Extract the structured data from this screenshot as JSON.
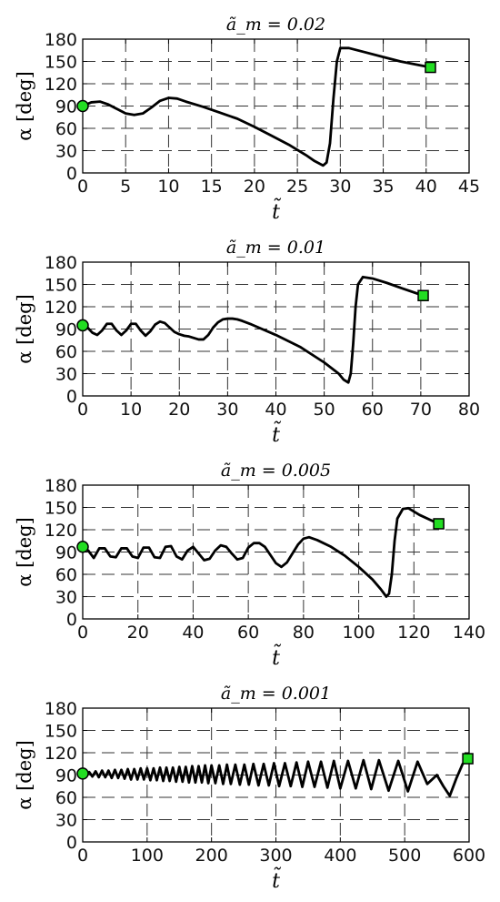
{
  "chart_data": [
    {
      "type": "line",
      "title": "ã_m = 0.02",
      "ylabel": "α [deg]",
      "xlabel": "t̃",
      "xlim": [
        0,
        45
      ],
      "ylim": [
        0,
        180
      ],
      "xticks": [
        "0",
        "5",
        "10",
        "15",
        "20",
        "25",
        "30",
        "35",
        "40",
        "45"
      ],
      "yticks": [
        "0",
        "30",
        "60",
        "90",
        "120",
        "150",
        "180"
      ],
      "grid": true,
      "start_marker": {
        "x": 0,
        "y": 90,
        "shape": "circle",
        "color": "#22dd22"
      },
      "end_marker": {
        "x": 40.5,
        "y": 142,
        "shape": "square",
        "color": "#22dd22"
      },
      "x": [
        0,
        1,
        2,
        3,
        4,
        5,
        6,
        7,
        8,
        9,
        10,
        11,
        12,
        14,
        16,
        18,
        20,
        22,
        24,
        26,
        27,
        28,
        28.4,
        28.8,
        29.2,
        29.6,
        30,
        31,
        33,
        35,
        37,
        40.5
      ],
      "y": [
        90,
        95,
        96,
        92,
        86,
        80,
        78,
        80,
        88,
        97,
        101,
        100,
        96,
        89,
        81,
        73,
        62,
        50,
        38,
        24,
        16,
        10,
        14,
        40,
        100,
        150,
        168,
        168,
        162,
        156,
        150,
        142
      ]
    },
    {
      "type": "line",
      "title": "ã_m = 0.01",
      "ylabel": "α [deg]",
      "xlabel": "t̃",
      "xlim": [
        0,
        80
      ],
      "ylim": [
        0,
        180
      ],
      "xticks": [
        "0",
        "10",
        "20",
        "30",
        "40",
        "50",
        "60",
        "70",
        "80"
      ],
      "yticks": [
        "0",
        "30",
        "60",
        "90",
        "120",
        "150",
        "180"
      ],
      "grid": true,
      "start_marker": {
        "x": 0,
        "y": 95,
        "shape": "circle",
        "color": "#22dd22"
      },
      "end_marker": {
        "x": 70.5,
        "y": 135,
        "shape": "square",
        "color": "#22dd22"
      },
      "x": [
        0,
        1,
        2,
        3,
        4,
        5,
        6,
        7,
        8,
        9,
        10,
        11,
        12,
        13,
        14,
        15,
        16,
        17,
        18,
        19,
        20,
        21,
        22,
        23,
        24,
        25,
        26,
        27,
        28,
        29,
        30,
        31,
        32,
        33,
        35,
        40,
        45,
        50,
        53,
        54,
        55,
        55.5,
        56,
        56.5,
        57,
        58,
        60,
        63,
        66,
        70.5
      ],
      "y": [
        95,
        92,
        85,
        82,
        88,
        97,
        97,
        88,
        82,
        88,
        97,
        97,
        88,
        81,
        87,
        96,
        100,
        98,
        92,
        86,
        83,
        81,
        80,
        78,
        76,
        76,
        82,
        92,
        99,
        103,
        104,
        104,
        103,
        101,
        96,
        82,
        66,
        45,
        30,
        22,
        18,
        30,
        70,
        120,
        150,
        160,
        158,
        152,
        145,
        135
      ]
    },
    {
      "type": "line",
      "title": "ã_m = 0.005",
      "ylabel": "α [deg]",
      "xlabel": "t̃",
      "xlim": [
        0,
        140
      ],
      "ylim": [
        0,
        180
      ],
      "xticks": [
        "0",
        "20",
        "40",
        "60",
        "80",
        "100",
        "120",
        "140"
      ],
      "yticks": [
        "0",
        "30",
        "60",
        "90",
        "120",
        "150",
        "180"
      ],
      "grid": true,
      "start_marker": {
        "x": 0,
        "y": 97,
        "shape": "circle",
        "color": "#22dd22"
      },
      "end_marker": {
        "x": 129,
        "y": 128,
        "shape": "square",
        "color": "#22dd22"
      },
      "x": [
        0,
        2,
        4,
        6,
        8,
        10,
        12,
        14,
        16,
        18,
        20,
        22,
        24,
        26,
        28,
        30,
        32,
        34,
        36,
        38,
        40,
        42,
        44,
        46,
        48,
        50,
        52,
        54,
        56,
        58,
        60,
        62,
        64,
        66,
        68,
        70,
        72,
        74,
        76,
        78,
        80,
        82,
        85,
        90,
        95,
        100,
        105,
        108,
        110,
        111,
        112,
        113,
        114,
        116,
        118,
        122,
        129
      ],
      "y": [
        97,
        92,
        82,
        95,
        95,
        84,
        83,
        95,
        95,
        84,
        82,
        96,
        96,
        83,
        82,
        97,
        98,
        84,
        80,
        92,
        97,
        88,
        79,
        81,
        92,
        99,
        97,
        88,
        80,
        82,
        96,
        102,
        102,
        97,
        86,
        75,
        70,
        76,
        88,
        100,
        108,
        110,
        106,
        97,
        85,
        70,
        53,
        40,
        30,
        34,
        60,
        105,
        135,
        148,
        149,
        140,
        128
      ]
    },
    {
      "type": "line",
      "title": "ã_m = 0.001",
      "ylabel": "α [deg]",
      "xlabel": "t̃",
      "xlim": [
        0,
        600
      ],
      "ylim": [
        0,
        180
      ],
      "xticks": [
        "0",
        "100",
        "200",
        "300",
        "400",
        "500",
        "600"
      ],
      "yticks": [
        "0",
        "30",
        "60",
        "90",
        "120",
        "150",
        "180"
      ],
      "grid": true,
      "start_marker": {
        "x": 0,
        "y": 92,
        "shape": "circle",
        "color": "#22dd22"
      },
      "end_marker": {
        "x": 598,
        "y": 112,
        "shape": "square",
        "color": "#22dd22"
      },
      "x": [
        0,
        5,
        10,
        15,
        20,
        25,
        30,
        35,
        40,
        45,
        50,
        55,
        60,
        65,
        70,
        75,
        80,
        85,
        90,
        95,
        100,
        105,
        110,
        115,
        120,
        125,
        130,
        135,
        140,
        145,
        150,
        155,
        160,
        165,
        170,
        175,
        180,
        185,
        190,
        195,
        200,
        206,
        212,
        218,
        224,
        230,
        237,
        244,
        251,
        258,
        265,
        273,
        281,
        289,
        297,
        305,
        314,
        323,
        332,
        341,
        350,
        360,
        370,
        380,
        390,
        400,
        412,
        424,
        436,
        448,
        460,
        475,
        490,
        505,
        520,
        535,
        550,
        560,
        570,
        580,
        590,
        598
      ],
      "y": [
        92,
        89,
        94,
        88,
        95,
        87,
        96,
        87,
        96,
        86,
        97,
        86,
        97,
        85,
        98,
        84,
        98,
        84,
        99,
        84,
        99,
        83,
        99,
        83,
        100,
        82,
        100,
        82,
        100,
        81,
        101,
        81,
        101,
        80,
        102,
        80,
        102,
        80,
        103,
        79,
        103,
        79,
        103,
        78,
        104,
        78,
        104,
        77,
        104,
        77,
        105,
        76,
        105,
        76,
        106,
        75,
        106,
        75,
        107,
        74,
        108,
        74,
        108,
        73,
        109,
        72,
        109,
        72,
        110,
        71,
        110,
        69,
        109,
        68,
        108,
        78,
        90,
        75,
        62,
        85,
        105,
        112
      ]
    }
  ]
}
